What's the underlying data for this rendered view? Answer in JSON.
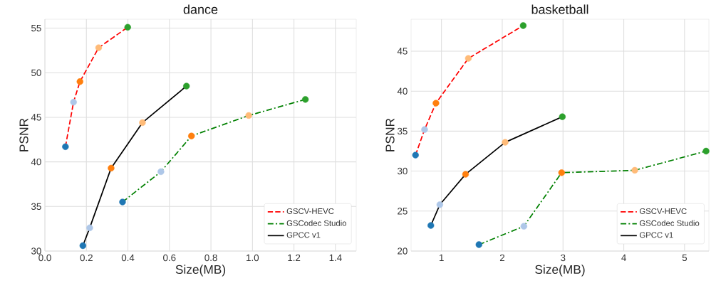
{
  "chart_data": [
    {
      "type": "line",
      "title": "dance",
      "xlabel": "Size(MB)",
      "ylabel": "PSNR",
      "xlim": [
        0,
        1.5
      ],
      "ylim": [
        30,
        56
      ],
      "xticks": [
        {
          "value": 0,
          "label": "0.0"
        },
        {
          "value": 0.2,
          "label": "0.2"
        },
        {
          "value": 0.4,
          "label": "0.4"
        },
        {
          "value": 0.6,
          "label": "0.6"
        },
        {
          "value": 0.8,
          "label": "0.8"
        },
        {
          "value": 1.0,
          "label": "1.0"
        },
        {
          "value": 1.2,
          "label": "1.2"
        },
        {
          "value": 1.4,
          "label": "1.4"
        }
      ],
      "yticks": [
        30,
        35,
        40,
        45,
        50,
        55
      ],
      "grid": true,
      "legend": "bottom right",
      "series": [
        {
          "type": "scatter",
          "marker": "circle",
          "x": [
            0.099,
            0.138,
            0.169,
            0.259,
            0.399
          ],
          "values": [
            41.7,
            46.7,
            49.0,
            52.8,
            55.1
          ],
          "colors": [
            "#1f77b4",
            "#aec7e8",
            "#ff7f0e",
            "#ffbb78",
            "#2ca02c"
          ]
        },
        {
          "type": "scatter",
          "marker": "circle",
          "x": [
            0.374,
            0.559,
            0.706,
            0.982,
            1.255
          ],
          "values": [
            35.5,
            38.9,
            42.9,
            45.2,
            47.0
          ],
          "colors": [
            "#1f77b4",
            "#aec7e8",
            "#ff7f0e",
            "#ffbb78",
            "#2ca02c"
          ]
        },
        {
          "type": "scatter",
          "marker": "circle",
          "x": [
            0.183,
            0.216,
            0.319,
            0.47,
            0.682
          ],
          "values": [
            30.6,
            32.6,
            39.3,
            44.4,
            48.5
          ],
          "colors": [
            "#1f77b4",
            "#aec7e8",
            "#ff7f0e",
            "#ffbb78",
            "#2ca02c"
          ]
        },
        {
          "name": "GSCV-HEVC",
          "color": "#ff0000",
          "line_style": "dashed",
          "x": [
            0.099,
            0.138,
            0.169,
            0.259,
            0.399
          ],
          "values": [
            41.7,
            46.7,
            49.0,
            52.8,
            55.1
          ]
        },
        {
          "name": "GSCodec Studio",
          "color": "#008000",
          "line_style": "dashdot",
          "x": [
            0.374,
            0.559,
            0.706,
            0.982,
            1.255
          ],
          "values": [
            35.5,
            38.9,
            42.9,
            45.2,
            47.0
          ]
        },
        {
          "name": "GPCC v1",
          "color": "#000000",
          "line_style": "solid",
          "x": [
            0.183,
            0.216,
            0.319,
            0.47,
            0.682
          ],
          "values": [
            30.6,
            32.6,
            39.3,
            44.4,
            48.5
          ]
        }
      ]
    },
    {
      "type": "line",
      "title": "basketball",
      "xlabel": "Size(MB)",
      "ylabel": "PSNR",
      "xlim": [
        0.5,
        5.4
      ],
      "ylim": [
        20,
        49
      ],
      "xticks": [
        1,
        2,
        3,
        4,
        5
      ],
      "yticks": [
        20,
        25,
        30,
        35,
        40,
        45
      ],
      "grid": true,
      "legend": "bottom right",
      "series": [
        {
          "type": "scatter",
          "marker": "circle",
          "x": [
            0.573,
            0.722,
            0.909,
            1.442,
            2.345
          ],
          "values": [
            32.0,
            35.2,
            38.5,
            44.1,
            48.2
          ],
          "colors": [
            "#1f77b4",
            "#aec7e8",
            "#ff7f0e",
            "#ffbb78",
            "#2ca02c"
          ]
        },
        {
          "type": "scatter",
          "marker": "circle",
          "x": [
            1.617,
            2.356,
            2.977,
            4.181,
            5.354
          ],
          "values": [
            20.8,
            23.1,
            29.8,
            30.1,
            32.5
          ],
          "colors": [
            "#1f77b4",
            "#aec7e8",
            "#ff7f0e",
            "#ffbb78",
            "#2ca02c"
          ]
        },
        {
          "type": "scatter",
          "marker": "circle",
          "x": [
            0.825,
            0.973,
            1.396,
            2.048,
            2.989
          ],
          "values": [
            23.2,
            25.8,
            29.6,
            33.6,
            36.8
          ],
          "colors": [
            "#1f77b4",
            "#aec7e8",
            "#ff7f0e",
            "#ffbb78",
            "#2ca02c"
          ]
        },
        {
          "name": "GSCV-HEVC",
          "color": "#ff0000",
          "line_style": "dashed",
          "x": [
            0.573,
            0.722,
            0.909,
            1.442,
            2.345
          ],
          "values": [
            32.0,
            35.2,
            38.5,
            44.1,
            48.2
          ]
        },
        {
          "name": "GSCodec Studio",
          "color": "#008000",
          "line_style": "dashdot",
          "x": [
            1.617,
            2.356,
            2.977,
            4.181,
            5.354
          ],
          "values": [
            20.8,
            23.1,
            29.8,
            30.1,
            32.5
          ]
        },
        {
          "name": "GPCC v1",
          "color": "#000000",
          "line_style": "solid",
          "x": [
            0.825,
            0.973,
            1.396,
            2.048,
            2.989
          ],
          "values": [
            23.2,
            25.8,
            29.6,
            33.6,
            36.8
          ]
        }
      ]
    }
  ]
}
